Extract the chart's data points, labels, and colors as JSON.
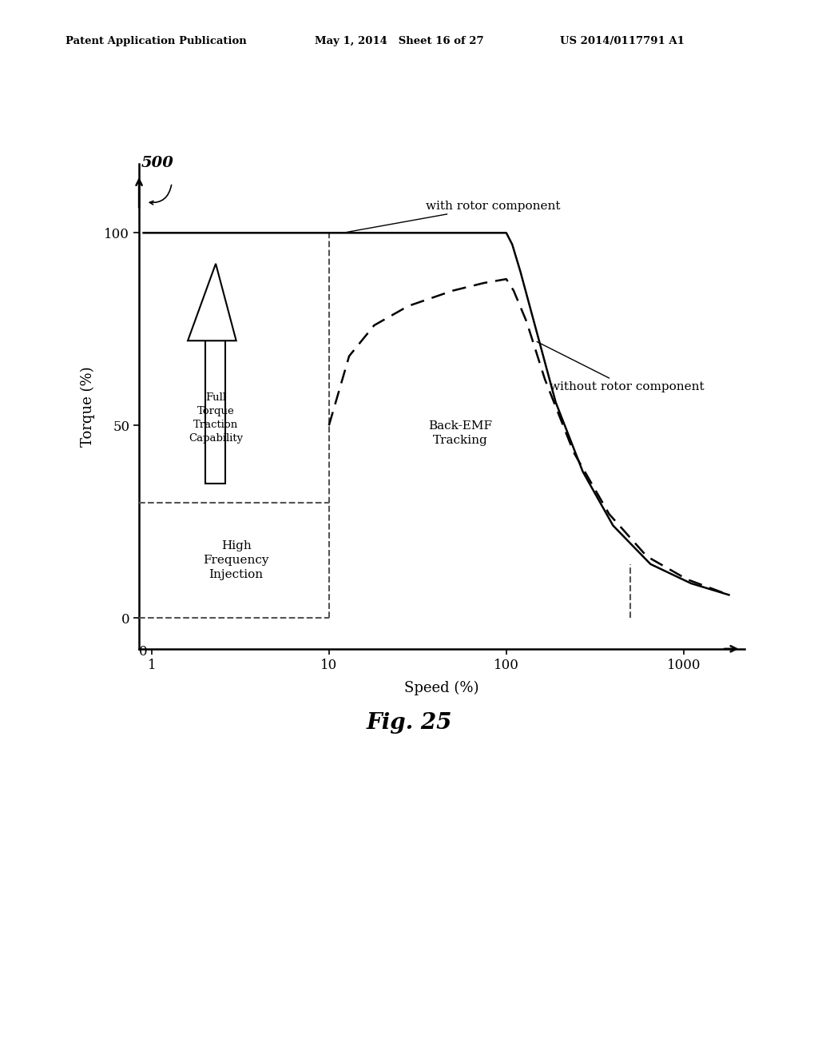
{
  "header_left": "Patent Application Publication",
  "header_mid": "May 1, 2014   Sheet 16 of 27",
  "header_right": "US 2014/0117791 A1",
  "fig_label": "Fig. 25",
  "xlabel": "Speed (%)",
  "ylabel": "Torque (%)",
  "background": "#ffffff"
}
